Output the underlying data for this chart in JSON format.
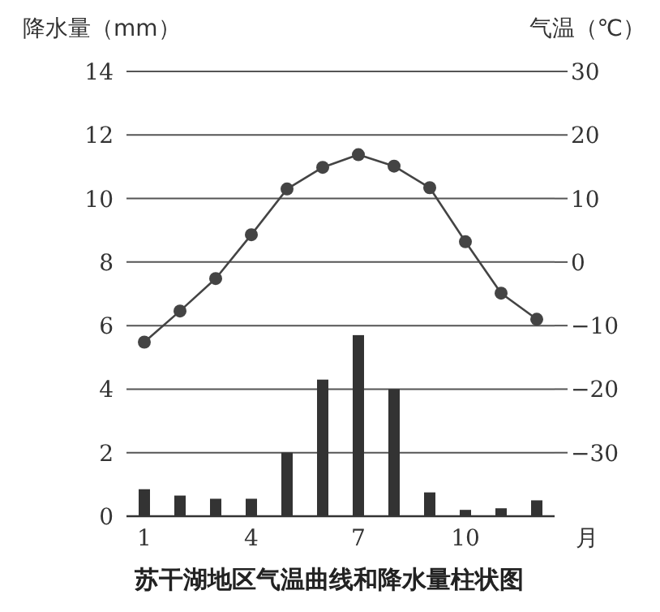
{
  "chart_data": {
    "type": "bar",
    "title": "苏干湖地区气温曲线和降水量柱状图",
    "xlabel": "月",
    "ylabel": "降水量（mm）",
    "y2label": "气温（℃）",
    "categories": [
      "1",
      null,
      null,
      "4",
      null,
      null,
      "7",
      null,
      null,
      "10",
      null,
      null
    ],
    "ylim": [
      0,
      14
    ],
    "yticks": [
      0,
      2,
      4,
      6,
      8,
      10,
      12,
      14
    ],
    "y2lim": [
      -40,
      30
    ],
    "y2ticks": [
      -30,
      -20,
      -10,
      0,
      10,
      20,
      30
    ],
    "grid": "y",
    "series": [
      {
        "color": "#333333",
        "values": [
          0.85,
          0.65,
          0.55,
          0.55,
          2.0,
          4.3,
          5.7,
          4.0,
          0.75,
          0.2,
          0.25,
          0.5
        ]
      },
      {
        "type": "line",
        "axis": "y2",
        "color": "#444444",
        "marker": "circle",
        "values": [
          -12.6,
          -7.7,
          -2.6,
          4.3,
          11.5,
          14.9,
          16.9,
          15.1,
          11.7,
          3.2,
          -4.9,
          -9.0
        ]
      }
    ]
  }
}
